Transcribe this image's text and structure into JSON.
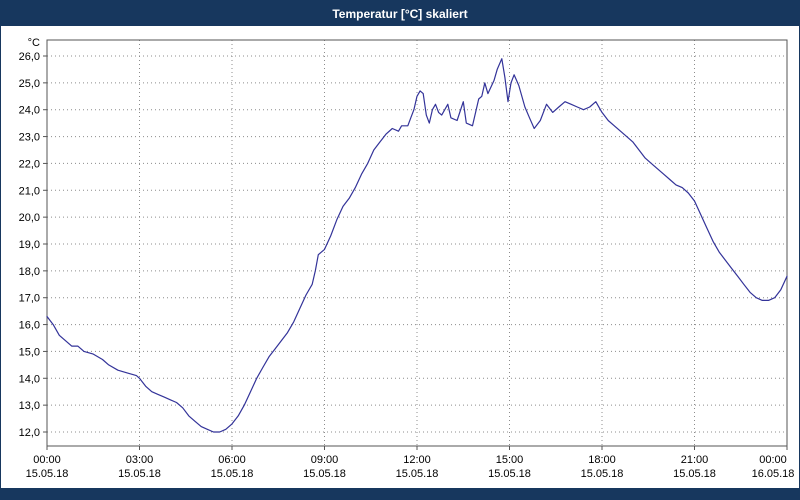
{
  "window": {
    "title": "Temperatur [°C] skaliert"
  },
  "colors": {
    "titlebar_bg": "#17375E",
    "title_text": "#ffffff",
    "line": "#333399",
    "grid": "#8c8c8c",
    "axis": "#555555",
    "label_text": "#000000",
    "plot_bg": "#ffffff"
  },
  "chart_data": {
    "type": "line",
    "title": "Temperatur [°C] skaliert",
    "ylabel": "°C",
    "grid": "dotted",
    "legend": "none",
    "ylim": [
      11.5,
      26.6
    ],
    "xlim_hours": [
      0,
      24
    ],
    "y_ticks": [
      {
        "value": 26,
        "label": "26,0"
      },
      {
        "value": 25,
        "label": "25,0"
      },
      {
        "value": 24,
        "label": "24,0"
      },
      {
        "value": 23,
        "label": "23,0"
      },
      {
        "value": 22,
        "label": "22,0"
      },
      {
        "value": 21,
        "label": "21,0"
      },
      {
        "value": 20,
        "label": "20,0"
      },
      {
        "value": 19,
        "label": "19,0"
      },
      {
        "value": 18,
        "label": "18,0"
      },
      {
        "value": 17,
        "label": "17,0"
      },
      {
        "value": 16,
        "label": "16,0"
      },
      {
        "value": 15,
        "label": "15,0"
      },
      {
        "value": 14,
        "label": "14,0"
      },
      {
        "value": 13,
        "label": "13,0"
      },
      {
        "value": 12,
        "label": "12,0"
      }
    ],
    "x_ticks": [
      {
        "hour": 0,
        "time": "00:00",
        "date": "15.05.18"
      },
      {
        "hour": 3,
        "time": "03:00",
        "date": "15.05.18"
      },
      {
        "hour": 6,
        "time": "06:00",
        "date": "15.05.18"
      },
      {
        "hour": 9,
        "time": "09:00",
        "date": "15.05.18"
      },
      {
        "hour": 12,
        "time": "12:00",
        "date": "15.05.18"
      },
      {
        "hour": 15,
        "time": "15:00",
        "date": "15.05.18"
      },
      {
        "hour": 18,
        "time": "18:00",
        "date": "15.05.18"
      },
      {
        "hour": 21,
        "time": "21:00",
        "date": "15.05.18"
      },
      {
        "hour": 24,
        "time": "00:00",
        "date": "16.05.18"
      }
    ],
    "series": [
      {
        "name": "Temperatur",
        "x_hours": [
          0.0,
          0.2,
          0.4,
          0.6,
          0.8,
          1.0,
          1.2,
          1.5,
          1.8,
          2.0,
          2.3,
          2.6,
          2.9,
          3.0,
          3.2,
          3.4,
          3.6,
          3.8,
          4.0,
          4.2,
          4.4,
          4.6,
          4.8,
          5.0,
          5.2,
          5.4,
          5.6,
          5.8,
          6.0,
          6.2,
          6.4,
          6.6,
          6.8,
          7.0,
          7.2,
          7.4,
          7.6,
          7.8,
          8.0,
          8.2,
          8.4,
          8.6,
          8.7,
          8.8,
          9.0,
          9.2,
          9.4,
          9.6,
          9.8,
          10.0,
          10.2,
          10.4,
          10.6,
          10.8,
          11.0,
          11.2,
          11.4,
          11.5,
          11.7,
          11.8,
          11.9,
          12.0,
          12.1,
          12.2,
          12.3,
          12.4,
          12.5,
          12.6,
          12.7,
          12.8,
          13.0,
          13.1,
          13.3,
          13.5,
          13.6,
          13.8,
          14.0,
          14.1,
          14.2,
          14.3,
          14.5,
          14.6,
          14.75,
          14.85,
          14.95,
          15.05,
          15.15,
          15.3,
          15.5,
          15.65,
          15.8,
          16.0,
          16.2,
          16.4,
          16.6,
          16.8,
          17.0,
          17.2,
          17.4,
          17.6,
          17.8,
          18.0,
          18.2,
          18.4,
          18.6,
          18.8,
          19.0,
          19.2,
          19.4,
          19.6,
          19.8,
          20.0,
          20.2,
          20.4,
          20.6,
          20.8,
          21.0,
          21.2,
          21.4,
          21.6,
          21.8,
          22.0,
          22.2,
          22.4,
          22.6,
          22.8,
          23.0,
          23.2,
          23.4,
          23.6,
          23.8,
          24.0
        ],
        "values": [
          16.3,
          16.0,
          15.6,
          15.4,
          15.2,
          15.2,
          15.0,
          14.9,
          14.7,
          14.5,
          14.3,
          14.2,
          14.1,
          14.0,
          13.7,
          13.5,
          13.4,
          13.3,
          13.2,
          13.1,
          12.9,
          12.6,
          12.4,
          12.2,
          12.1,
          12.0,
          12.0,
          12.1,
          12.3,
          12.6,
          13.0,
          13.5,
          14.0,
          14.4,
          14.8,
          15.1,
          15.4,
          15.7,
          16.1,
          16.6,
          17.1,
          17.5,
          18.0,
          18.6,
          18.8,
          19.3,
          19.9,
          20.4,
          20.7,
          21.1,
          21.6,
          22.0,
          22.5,
          22.8,
          23.1,
          23.3,
          23.2,
          23.4,
          23.4,
          23.7,
          24.0,
          24.5,
          24.7,
          24.6,
          23.8,
          23.5,
          24.0,
          24.2,
          23.9,
          23.8,
          24.2,
          23.7,
          23.6,
          24.3,
          23.5,
          23.4,
          24.4,
          24.5,
          25.0,
          24.6,
          25.1,
          25.5,
          25.9,
          25.2,
          24.3,
          25.0,
          25.3,
          24.9,
          24.1,
          23.7,
          23.3,
          23.6,
          24.2,
          23.9,
          24.1,
          24.3,
          24.2,
          24.1,
          24.0,
          24.1,
          24.3,
          23.9,
          23.6,
          23.4,
          23.2,
          23.0,
          22.8,
          22.5,
          22.2,
          22.0,
          21.8,
          21.6,
          21.4,
          21.2,
          21.1,
          20.9,
          20.6,
          20.1,
          19.6,
          19.1,
          18.7,
          18.4,
          18.1,
          17.8,
          17.5,
          17.2,
          17.0,
          16.9,
          16.9,
          17.0,
          17.3,
          17.8
        ]
      }
    ]
  }
}
